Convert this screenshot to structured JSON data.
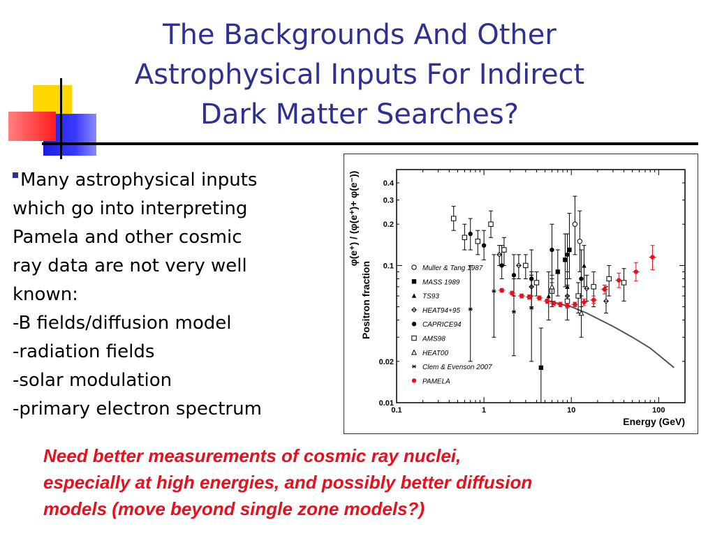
{
  "slide": {
    "title_lines": [
      "The Backgrounds And Other",
      "Astrophysical Inputs For Indirect",
      "Dark Matter Searches?"
    ],
    "bullet_lines": [
      "Many astrophysical inputs",
      "which go into interpreting",
      "Pamela and other cosmic",
      "ray data are not very well",
      "known:",
      "-B fields/diffusion model",
      "-radiation fields",
      "-solar modulation",
      "-primary electron spectrum"
    ],
    "note_lines": [
      "Need better measurements of cosmic ray nuclei,",
      "especially at high energies, and possibly better diffusion",
      "models (move beyond single zone models?)"
    ],
    "colors": {
      "title": "#2e3192",
      "note": "#e8101c",
      "pamela": "#e8101c"
    }
  },
  "chart_data": {
    "type": "scatter",
    "xscale": "log",
    "yscale": "log",
    "xlim": [
      0.1,
      200
    ],
    "ylim": [
      0.01,
      0.5
    ],
    "xlabel": "Energy (GeV)",
    "ylabel": "Positron fraction",
    "ylabel_formula": "φ(e⁺) / (φ(e⁺)+ φ(e⁻))",
    "x_ticks": [
      "0.1",
      "1",
      "10",
      "100"
    ],
    "y_ticks": [
      "0.01",
      "0.02",
      "0.1",
      "0.2",
      "0.3",
      "0.4"
    ],
    "legend_position": "left",
    "series": [
      {
        "name": "Muller & Tang 1987",
        "marker": "open-circle",
        "x": [
          11,
          12.5
        ],
        "y": [
          0.2,
          0.15
        ],
        "ylo": [
          0.12,
          0.09
        ],
        "yhi": [
          0.32,
          0.25
        ]
      },
      {
        "name": "MASS 1989",
        "marker": "filled-square",
        "x": [
          4.5,
          7,
          8.5,
          9.5
        ],
        "y": [
          0.018,
          0.09,
          0.11,
          0.13
        ],
        "ylo": [
          0.01,
          0.06,
          0.07,
          0.08
        ],
        "yhi": [
          0.035,
          0.13,
          0.17,
          0.24
        ]
      },
      {
        "name": "TS93",
        "marker": "filled-triangle",
        "x": [
          5.5,
          9,
          14
        ],
        "y": [
          0.06,
          0.07,
          0.1
        ],
        "ylo": [
          0.04,
          0.05,
          0.07
        ],
        "yhi": [
          0.09,
          0.09,
          0.14
        ]
      },
      {
        "name": "HEAT94+95",
        "marker": "open-diamond",
        "x": [
          1.5,
          2.5,
          3.5,
          6,
          9,
          15,
          25
        ],
        "y": [
          0.12,
          0.1,
          0.07,
          0.065,
          0.06,
          0.068,
          0.055
        ],
        "ylo": [
          0.1,
          0.08,
          0.06,
          0.055,
          0.05,
          0.055,
          0.045
        ],
        "yhi": [
          0.14,
          0.12,
          0.085,
          0.075,
          0.072,
          0.085,
          0.07
        ]
      },
      {
        "name": "CAPRICE94",
        "marker": "filled-circle",
        "x": [
          0.7,
          1,
          1.6,
          2.2,
          3.5,
          6,
          9,
          13
        ],
        "y": [
          0.17,
          0.14,
          0.1,
          0.085,
          0.08,
          0.13,
          0.12,
          0.08
        ],
        "ylo": [
          0.13,
          0.11,
          0.08,
          0.06,
          0.05,
          0.08,
          0.08,
          0.05
        ],
        "yhi": [
          0.22,
          0.18,
          0.14,
          0.12,
          0.13,
          0.2,
          0.17,
          0.13
        ]
      },
      {
        "name": "AMS98",
        "marker": "open-square",
        "x": [
          0.45,
          0.6,
          0.85,
          1.2,
          1.7,
          3,
          4,
          6,
          9,
          12,
          18,
          27,
          40
        ],
        "y": [
          0.22,
          0.16,
          0.15,
          0.2,
          0.13,
          0.1,
          0.075,
          0.065,
          0.055,
          0.06,
          0.07,
          0.08,
          0.075
        ],
        "ylo": [
          0.18,
          0.13,
          0.12,
          0.16,
          0.1,
          0.08,
          0.06,
          0.05,
          0.04,
          0.045,
          0.05,
          0.06,
          0.055
        ],
        "yhi": [
          0.27,
          0.2,
          0.18,
          0.25,
          0.16,
          0.12,
          0.09,
          0.08,
          0.07,
          0.075,
          0.09,
          0.1,
          0.095
        ]
      },
      {
        "name": "HEAT00",
        "marker": "open-triangle",
        "x": [
          6,
          13
        ],
        "y": [
          0.07,
          0.045
        ],
        "ylo": [
          0.055,
          0.03
        ],
        "yhi": [
          0.085,
          0.06
        ]
      },
      {
        "name": "Clem & Evenson 2007",
        "marker": "asterisk",
        "x": [
          0.7,
          1.3,
          2.2,
          3.5
        ],
        "y": [
          0.048,
          0.065,
          0.046,
          0.049
        ],
        "ylo": [
          0.02,
          0.03,
          0.022,
          0.02
        ],
        "yhi": [
          0.1,
          0.12,
          0.08,
          0.09
        ]
      },
      {
        "name": "PAMELA",
        "marker": "red-dot",
        "x": [
          1.6,
          2.1,
          2.7,
          3.3,
          4.3,
          5.3,
          6.3,
          7.5,
          9,
          11,
          14,
          18,
          24,
          35,
          55,
          85
        ],
        "y": [
          0.066,
          0.063,
          0.06,
          0.059,
          0.058,
          0.055,
          0.053,
          0.052,
          0.051,
          0.052,
          0.054,
          0.056,
          0.067,
          0.078,
          0.09,
          0.115
        ],
        "ylo": [
          0.064,
          0.061,
          0.058,
          0.057,
          0.056,
          0.053,
          0.051,
          0.05,
          0.049,
          0.05,
          0.051,
          0.053,
          0.062,
          0.069,
          0.077,
          0.093
        ],
        "yhi": [
          0.068,
          0.065,
          0.062,
          0.061,
          0.06,
          0.057,
          0.055,
          0.054,
          0.053,
          0.054,
          0.057,
          0.06,
          0.072,
          0.088,
          0.105,
          0.14
        ]
      }
    ],
    "model_curve": {
      "x": [
        5,
        7,
        10,
        15,
        20,
        30,
        50,
        80,
        150
      ],
      "y": [
        0.056,
        0.053,
        0.05,
        0.045,
        0.041,
        0.036,
        0.03,
        0.025,
        0.018
      ]
    }
  }
}
